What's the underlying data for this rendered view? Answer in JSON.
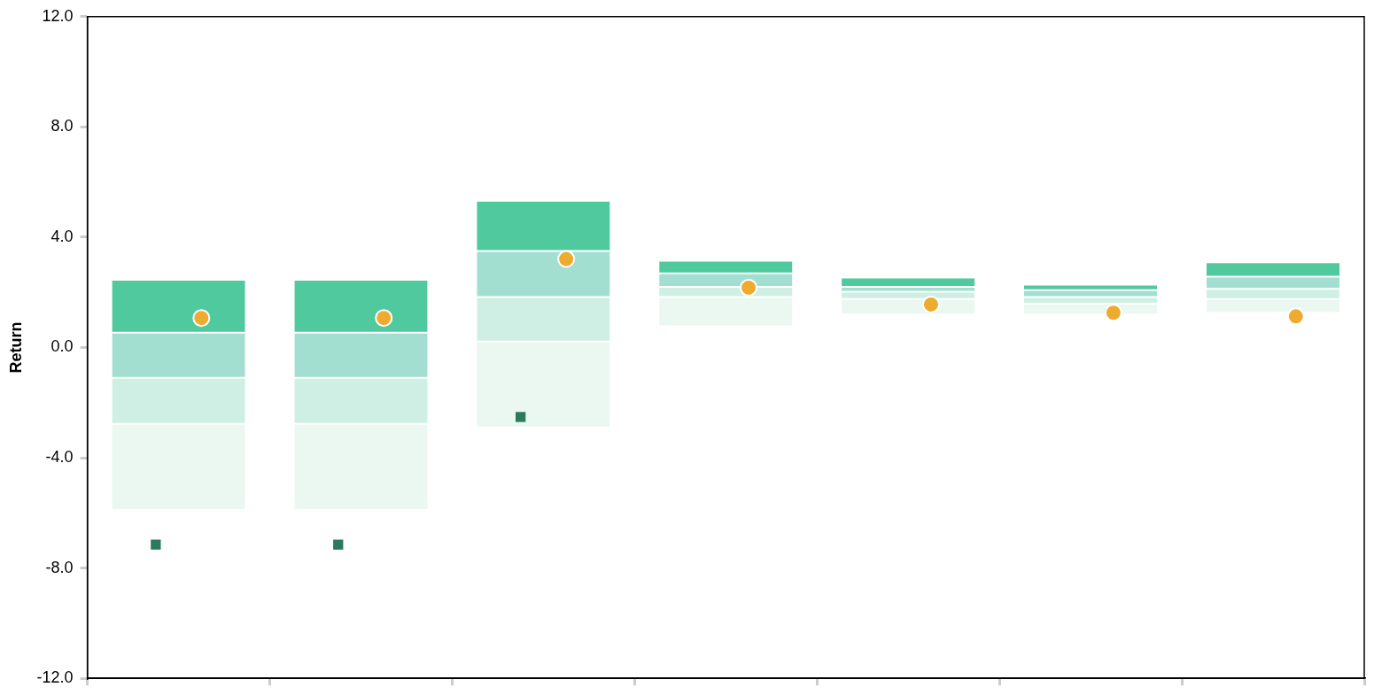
{
  "chart_data": {
    "type": "bar",
    "ylabel": "Return",
    "categories": [
      null,
      null,
      null,
      null,
      null,
      null,
      null
    ],
    "series": [
      {
        "color": "#eaf8f1",
        "base": [
          -5.89,
          -5.89,
          -2.9,
          0.77,
          1.2,
          1.2,
          1.26
        ],
        "values": [
          3.12,
          3.12,
          3.12,
          1.06,
          0.56,
          0.39,
          0.5
        ]
      },
      {
        "color": "#d0efe4",
        "base": [
          -2.77,
          -2.77,
          0.22,
          1.83,
          1.76,
          1.59,
          1.76
        ],
        "values": [
          1.67,
          1.67,
          1.61,
          0.37,
          0.26,
          0.24,
          0.37
        ]
      },
      {
        "color": "#a3dfd0",
        "base": [
          -1.1,
          -1.1,
          1.83,
          2.2,
          2.02,
          1.83,
          2.13
        ],
        "values": [
          1.64,
          1.64,
          1.67,
          0.49,
          0.18,
          0.25,
          0.44
        ]
      },
      {
        "color": "#50c99f",
        "base": [
          0.54,
          0.54,
          3.5,
          2.69,
          2.2,
          2.08,
          2.57
        ],
        "values": [
          1.92,
          1.92,
          1.82,
          0.46,
          0.34,
          0.2,
          0.52
        ]
      },
      {
        "type": "scatter",
        "marker": "circle",
        "color": "#edab30",
        "values": [
          1.07,
          1.07,
          3.21,
          2.17,
          1.56,
          1.26,
          1.13
        ]
      },
      {
        "type": "scatter",
        "marker": "square",
        "color": "#2a7a5b",
        "values": [
          -7.15,
          -7.15,
          -2.52,
          null,
          null,
          null,
          null
        ]
      }
    ],
    "ylim": [
      -12,
      12
    ],
    "yticks": [
      {
        "value": -12,
        "label": "-12.0"
      },
      {
        "value": -8,
        "label": "-8.0"
      },
      {
        "value": -4,
        "label": "-4.0"
      },
      {
        "value": 0,
        "label": "0.0"
      },
      {
        "value": 4,
        "label": "4.0"
      },
      {
        "value": 8,
        "label": "8.0"
      },
      {
        "value": 12,
        "label": "12.0"
      }
    ],
    "grid": false,
    "legend": false,
    "tick_labels": "y"
  }
}
